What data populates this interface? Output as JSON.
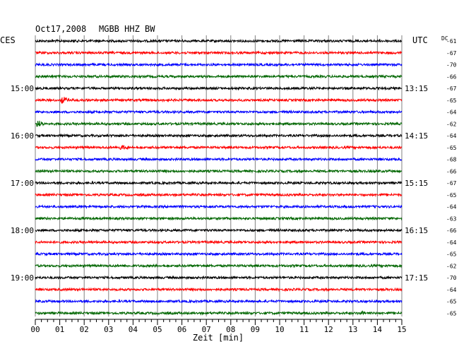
{
  "header": {
    "date": "Oct17,2008",
    "station": "MGBB HHZ BW",
    "local_tz": "CES",
    "utc_label": "UTC",
    "dc_label": "DC"
  },
  "colors": {
    "trace_cycle": [
      "#000000",
      "#ff0000",
      "#0000ff",
      "#006600"
    ],
    "grid": "#808080",
    "background": "#ffffff"
  },
  "chart_data": {
    "type": "line",
    "subtype": "helicorder",
    "xlabel": "Zeit [min]",
    "xlim": [
      0,
      15
    ],
    "xticks": [
      "00",
      "01",
      "02",
      "03",
      "04",
      "05",
      "06",
      "07",
      "08",
      "09",
      "10",
      "11",
      "12",
      "13",
      "14",
      "15"
    ],
    "minutes_per_line": 15,
    "line_count": 24,
    "local_time_labels": [
      {
        "line": 4,
        "text": "15:00"
      },
      {
        "line": 8,
        "text": "16:00"
      },
      {
        "line": 12,
        "text": "17:00"
      },
      {
        "line": 16,
        "text": "18:00"
      },
      {
        "line": 20,
        "text": "19:00"
      }
    ],
    "utc_time_labels": [
      {
        "line": 4,
        "text": "13:15"
      },
      {
        "line": 8,
        "text": "14:15"
      },
      {
        "line": 12,
        "text": "15:15"
      },
      {
        "line": 16,
        "text": "16:15"
      },
      {
        "line": 20,
        "text": "17:15"
      }
    ],
    "dc_offsets": [
      -61,
      -67,
      -70,
      -66,
      -67,
      -65,
      -64,
      -62,
      -64,
      -65,
      -68,
      -66,
      -67,
      -65,
      -64,
      -63,
      -66,
      -64,
      -65,
      -62,
      -70,
      -64,
      -65,
      -65
    ],
    "events": [
      {
        "line": 5,
        "minute": 1.1,
        "amplitude": "small"
      },
      {
        "line": 7,
        "minute": 0.1,
        "amplitude": "small"
      },
      {
        "line": 9,
        "minute": 3.4,
        "amplitude": "small"
      },
      {
        "line": 23,
        "minute": 13.4,
        "amplitude": "tiny"
      }
    ]
  }
}
